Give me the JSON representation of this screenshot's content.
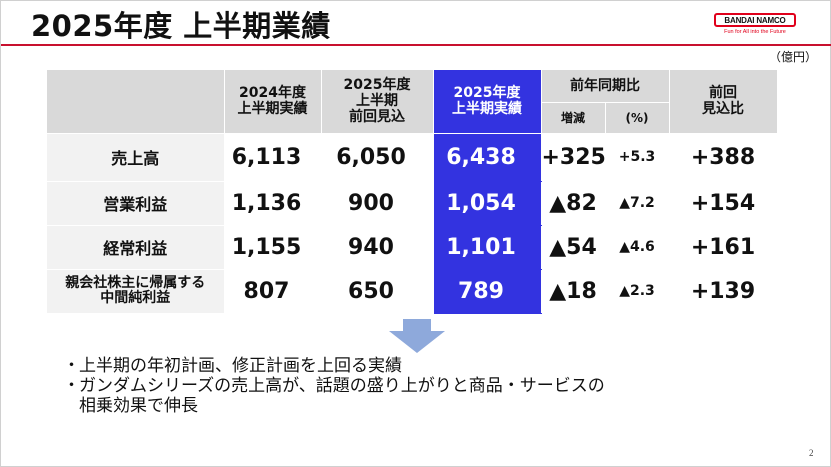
{
  "title": "2025年度 上半期業績",
  "logo": {
    "name": "BANDAI NAMCO",
    "tagline": "Fun for All into the Future"
  },
  "unit": "（億円）",
  "table": {
    "headers": {
      "col1": "2024年度\n上半期実績",
      "col2": "2025年度\n上半期\n前回見込",
      "col3": "2025年度\n上半期実績",
      "yoy": "前年同期比",
      "yoy_change": "増減",
      "yoy_pct": "(%)",
      "vs_forecast": "前回\n見込比"
    },
    "rows": [
      {
        "label": "売上高",
        "fy24": "6,113",
        "forecast": "6,050",
        "fy25": "6,438",
        "change": "+325",
        "pct": "+5.3",
        "vs_forecast": "+388"
      },
      {
        "label": "営業利益",
        "fy24": "1,136",
        "forecast": "900",
        "fy25": "1,054",
        "change": "▲82",
        "pct": "▲7.2",
        "vs_forecast": "+154"
      },
      {
        "label": "経常利益",
        "fy24": "1,155",
        "forecast": "940",
        "fy25": "1,101",
        "change": "▲54",
        "pct": "▲4.6",
        "vs_forecast": "+161"
      },
      {
        "label": "親会社株主に帰属する\n中間純利益",
        "fy24": "807",
        "forecast": "650",
        "fy25": "789",
        "change": "▲18",
        "pct": "▲2.3",
        "vs_forecast": "+139"
      }
    ]
  },
  "bullets": [
    "上半期の年初計画、修正計画を上回る実績",
    "ガンダムシリーズの売上高が、話題の盛り上がりと商品・サービスの",
    "相乗効果で伸長"
  ],
  "bullet_mark": "・",
  "page_number": "2",
  "colors": {
    "highlight": "#3333e0",
    "header_gray": "#d9d9d9",
    "brand_red": "#e0001b"
  }
}
